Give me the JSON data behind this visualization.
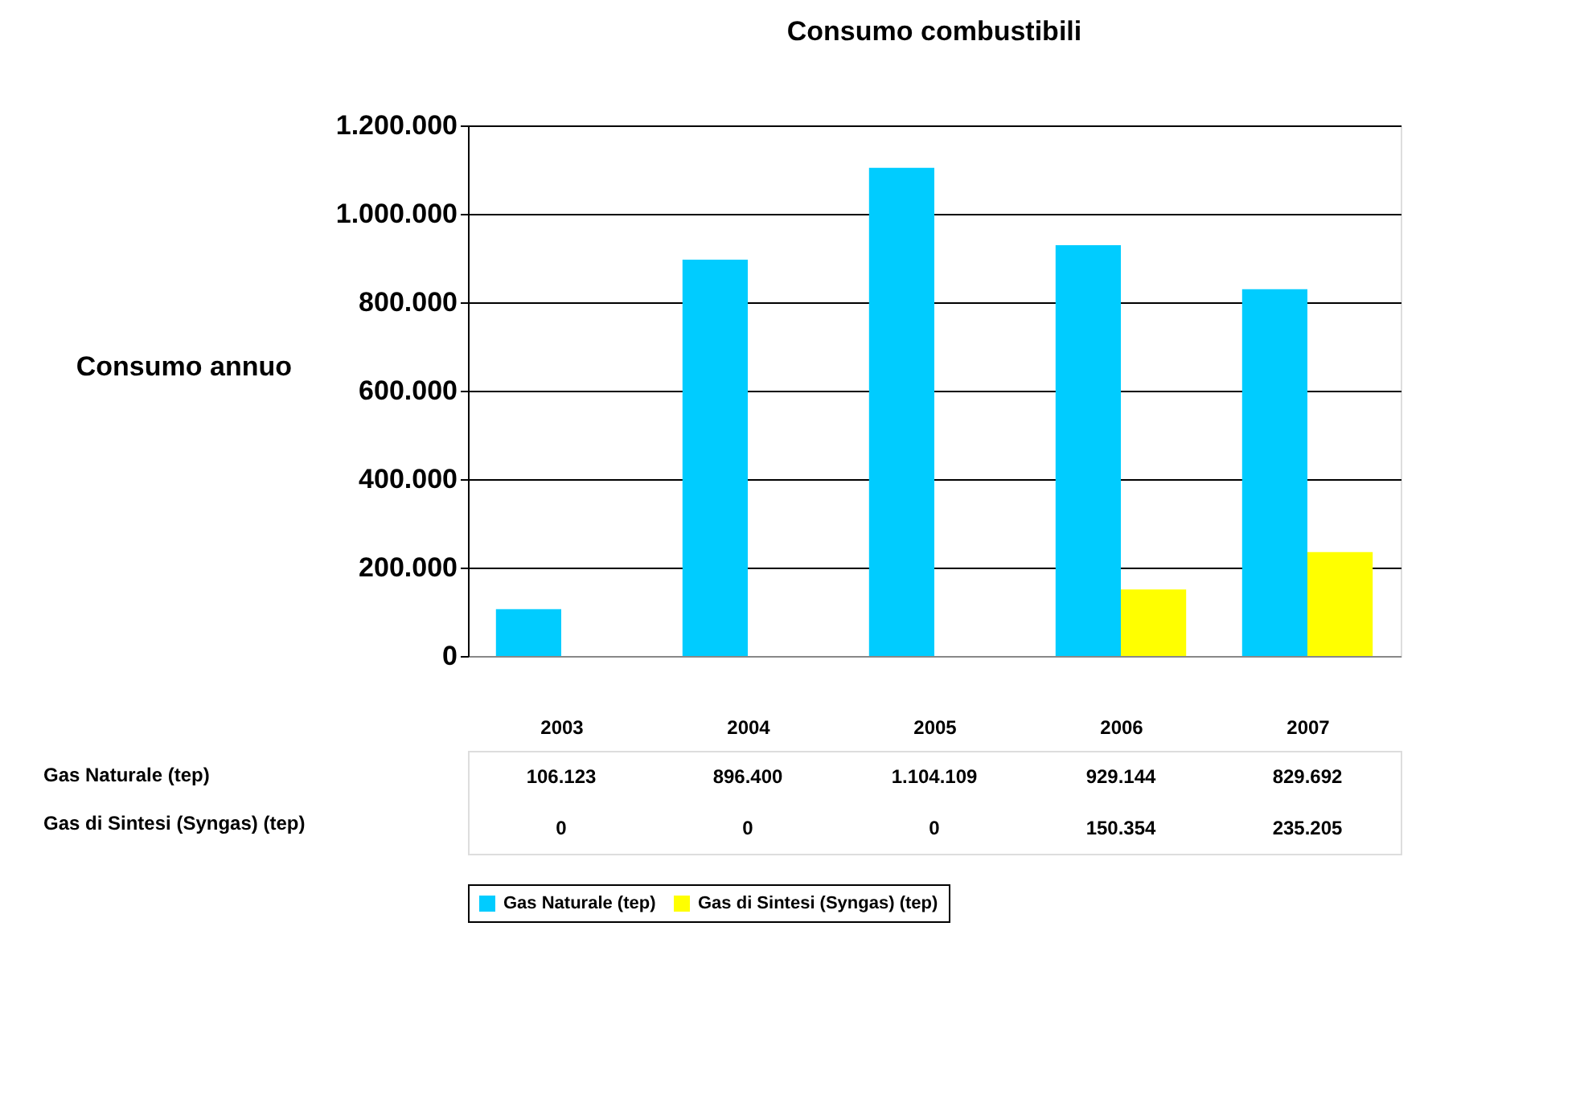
{
  "chart_data": {
    "type": "bar",
    "title": "Consumo combustibili",
    "ylabel": "Consumo annuo",
    "categories": [
      "2003",
      "2004",
      "2005",
      "2006",
      "2007"
    ],
    "series": [
      {
        "name": "Gas Naturale (tep)",
        "color": "#00ccff",
        "values": [
          106123,
          896400,
          1104109,
          929144,
          829692
        ],
        "value_labels": [
          "106.123",
          "896.400",
          "1.104.109",
          "929.144",
          "829.692"
        ]
      },
      {
        "name": "Gas di Sintesi (Syngas) (tep)",
        "color": "#ffff00",
        "values": [
          0,
          0,
          0,
          150354,
          235205
        ],
        "value_labels": [
          "0",
          "0",
          "0",
          "150.354",
          "235.205"
        ]
      }
    ],
    "ylim": [
      0,
      1200000
    ],
    "yticks": [
      {
        "value": 0,
        "label": "0"
      },
      {
        "value": 200000,
        "label": "200.000"
      },
      {
        "value": 400000,
        "label": "400.000"
      },
      {
        "value": 600000,
        "label": "600.000"
      },
      {
        "value": 800000,
        "label": "800.000"
      },
      {
        "value": 1000000,
        "label": "1.000.000"
      },
      {
        "value": 1200000,
        "label": "1.200.000"
      }
    ],
    "grid": "y",
    "legend": "bottom"
  }
}
